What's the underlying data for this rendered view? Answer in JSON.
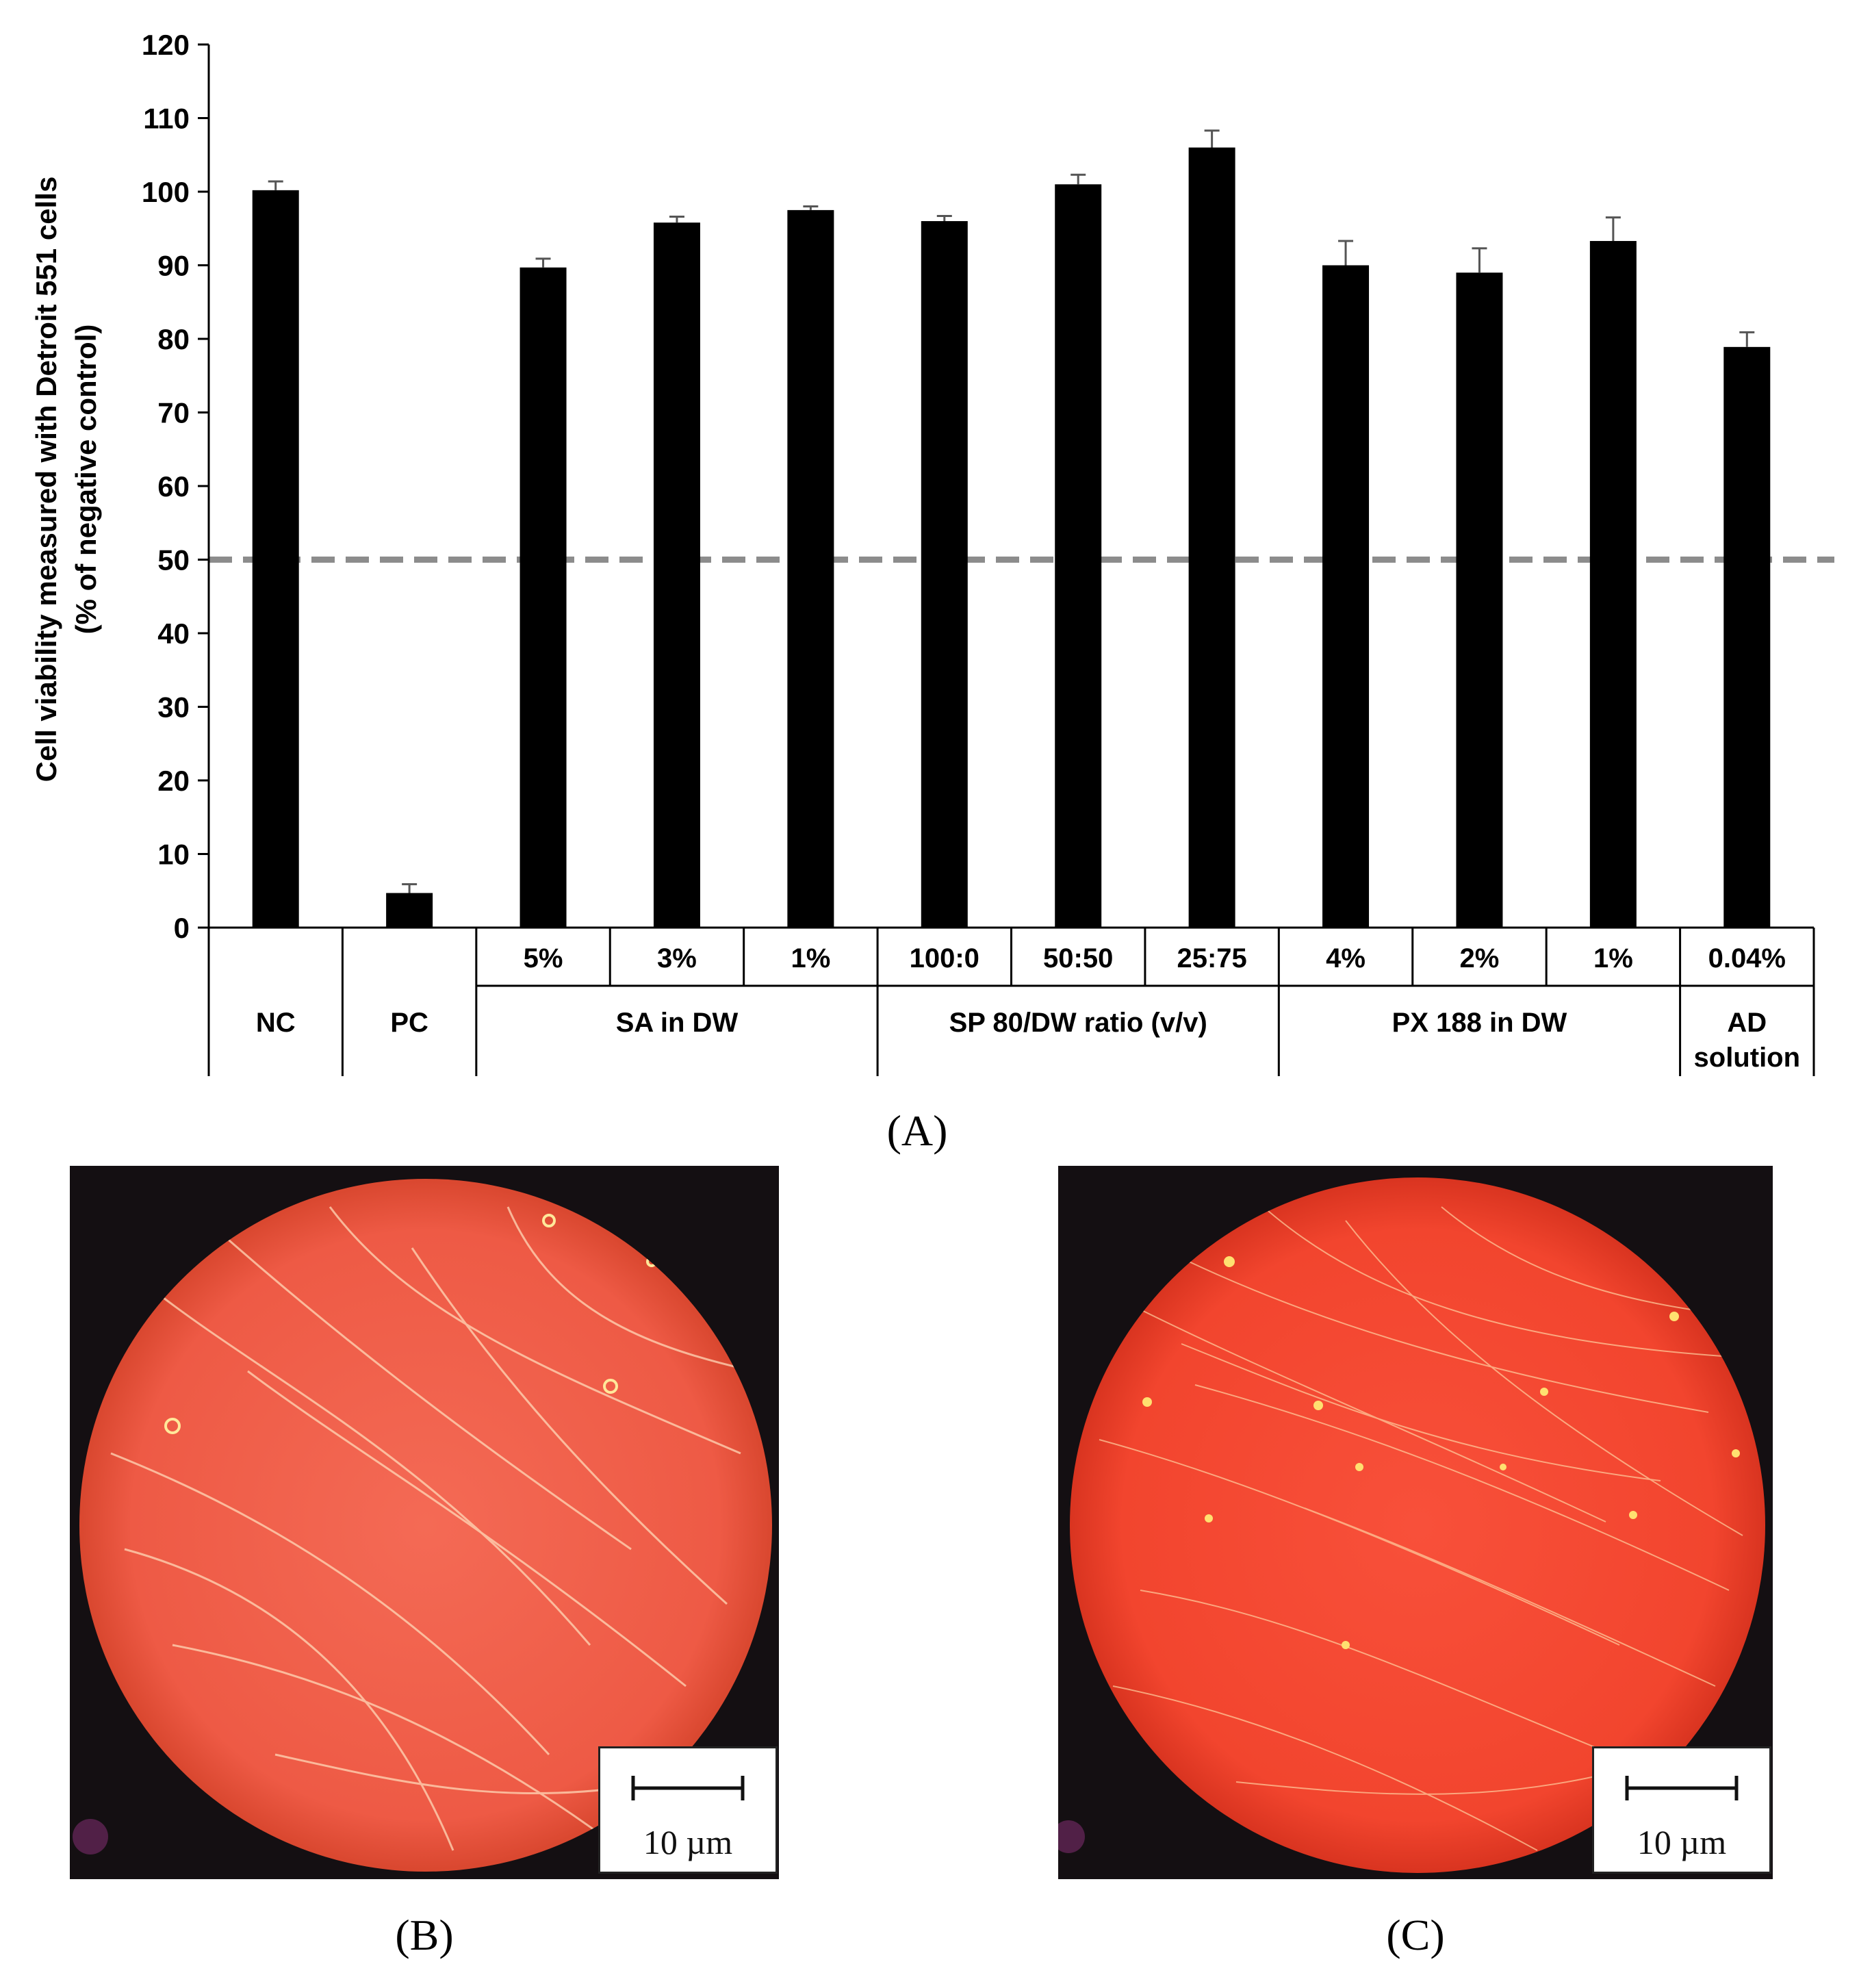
{
  "chart_data": {
    "type": "bar",
    "ylabel_line1": "Cell viability measured with Detroit 551 cells",
    "ylabel_line2": "(% of negative control)",
    "ylim": [
      0,
      120
    ],
    "y_ticks": [
      0,
      10,
      20,
      30,
      40,
      50,
      60,
      70,
      80,
      90,
      100,
      110,
      120
    ],
    "reference_line": 50,
    "bar_color": "#000000",
    "reference_line_color": "#8c8c8c",
    "categories": [
      "NC",
      "PC",
      "5%",
      "3%",
      "1%",
      "100:0",
      "50:50",
      "25:75",
      "4%",
      "2%",
      "1%",
      "0.04%"
    ],
    "values": [
      100.2,
      4.7,
      89.7,
      95.8,
      97.5,
      96.0,
      101.0,
      106.0,
      90.0,
      89.0,
      93.3,
      78.9
    ],
    "errors": [
      1.2,
      1.2,
      1.2,
      0.8,
      0.5,
      0.7,
      1.3,
      2.3,
      3.3,
      3.3,
      3.2,
      2.0
    ],
    "groups": [
      {
        "label": "NC",
        "label_line2": "",
        "start": 0,
        "end": 0
      },
      {
        "label": "PC",
        "label_line2": "",
        "start": 1,
        "end": 1
      },
      {
        "label": "SA in DW",
        "label_line2": "",
        "start": 2,
        "end": 4
      },
      {
        "label": "SP 80/DW ratio (v/v)",
        "label_line2": "",
        "start": 5,
        "end": 7
      },
      {
        "label": "PX 188 in DW",
        "label_line2": "",
        "start": 8,
        "end": 10
      },
      {
        "label": "AD",
        "label_line2": "solution",
        "start": 11,
        "end": 11
      }
    ]
  },
  "panels": {
    "a_label": "(A)",
    "b_label": "(B)",
    "c_label": "(C)"
  },
  "scale_bar_b": "10 µm",
  "scale_bar_c": "10 µm"
}
